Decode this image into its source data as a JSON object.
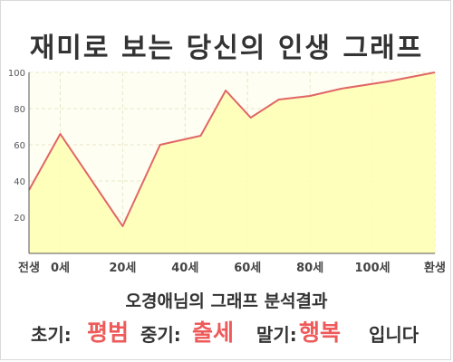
{
  "title": "재미로 보는 당신의 인생 그래프",
  "summary": "오경애님의 그래프 분석결과",
  "result": {
    "early_label": "초기:",
    "early_value": "평범",
    "mid_label": "중기:",
    "mid_value": "출세",
    "late_label": "말기:",
    "late_value": "행복",
    "suffix": "입니다"
  },
  "colors": {
    "line": "#e06666",
    "fill": "#ffffb3",
    "accent": "#ee5a5a"
  },
  "chart_data": {
    "type": "area",
    "x": [
      -10,
      0,
      20,
      32,
      45,
      53,
      61,
      70,
      80,
      90,
      105,
      120
    ],
    "y": [
      35,
      66,
      15,
      60,
      65,
      90,
      75,
      85,
      87,
      91,
      95,
      100
    ],
    "x_ticks": [
      {
        "x": -10,
        "label": "전생"
      },
      {
        "x": 0,
        "label": "0세"
      },
      {
        "x": 20,
        "label": "20세"
      },
      {
        "x": 40,
        "label": "40세"
      },
      {
        "x": 60,
        "label": "60세"
      },
      {
        "x": 80,
        "label": "80세"
      },
      {
        "x": 100,
        "label": "100세"
      },
      {
        "x": 120,
        "label": "환생"
      }
    ],
    "y_ticks": [
      20,
      40,
      60,
      80,
      100
    ],
    "xlim": [
      -10,
      120
    ],
    "ylim": [
      0,
      100
    ],
    "grid": true
  }
}
